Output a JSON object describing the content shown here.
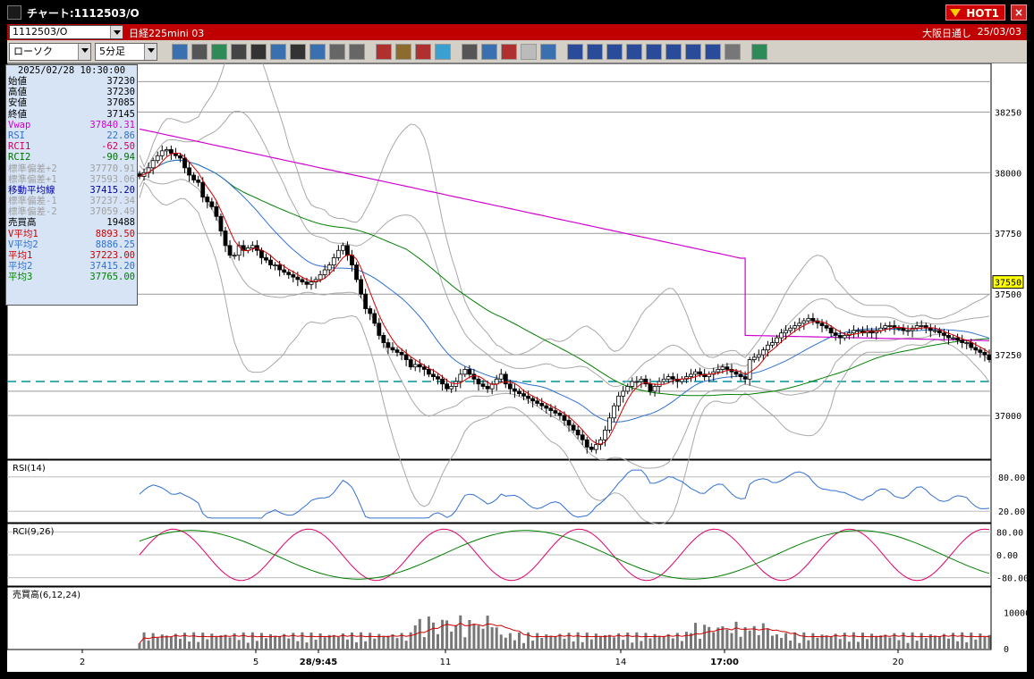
{
  "window": {
    "title": "チャート:1112503/O",
    "hot_badge": "HOT1",
    "close": "×"
  },
  "info": {
    "symbol": "1112503/O",
    "name": "日経225mini 03",
    "market": "大阪日通し",
    "date": "25/03/03"
  },
  "toolbar": {
    "chart_type": "ローソク",
    "timeframe": "5分足",
    "buttons": [
      "zoom",
      "crosshair",
      "draw-line",
      "draw-trend",
      "cursor",
      "undo",
      "memo",
      "delete",
      "bar-up",
      "bar-down",
      "ALL",
      "settings",
      "tools",
      "color",
      "down-arrow",
      "search",
      "cross-plus",
      "blank",
      "calc",
      "MA",
      "BB",
      "MAE",
      "HL",
      "ATR",
      "PS",
      "PVT",
      "window",
      "Log",
      "export"
    ]
  },
  "data_panel": {
    "datetime": "2025/02/28  10:30:00",
    "rows": [
      {
        "label": "始値",
        "value": "37230",
        "color": "#000000"
      },
      {
        "label": "高値",
        "value": "37230",
        "color": "#000000"
      },
      {
        "label": "安値",
        "value": "37085",
        "color": "#000000"
      },
      {
        "label": "終値",
        "value": "37145",
        "color": "#000000"
      },
      {
        "label": "Vwap",
        "value": "37840.31",
        "color": "#d000d0"
      },
      {
        "label": "RSI",
        "value": "22.86",
        "color": "#3070d0"
      },
      {
        "label": "RCI1",
        "value": "-62.50",
        "color": "#d00060"
      },
      {
        "label": "RCI2",
        "value": "-90.94",
        "color": "#007000"
      },
      {
        "label": "標準偏差+2",
        "value": "37770.91",
        "color": "#a0a0a0"
      },
      {
        "label": "標準偏差+1",
        "value": "37593.06",
        "color": "#a0a0a0"
      },
      {
        "label": "移動平均線",
        "value": "37415.20",
        "color": "#0000a0"
      },
      {
        "label": "標準偏差-1",
        "value": "37237.34",
        "color": "#a0a0a0"
      },
      {
        "label": "標準偏差-2",
        "value": "37059.49",
        "color": "#a0a0a0"
      },
      {
        "label": "売買高",
        "value": "19488",
        "color": "#000000"
      },
      {
        "label": "V平均1",
        "value": "8893.50",
        "color": "#d00000"
      },
      {
        "label": "V平均2",
        "value": "8886.25",
        "color": "#3070d0"
      },
      {
        "label": "平均1",
        "value": "37223.00",
        "color": "#d00000"
      },
      {
        "label": "平均2",
        "value": "37415.20",
        "color": "#3070d0"
      },
      {
        "label": "平均3",
        "value": "37765.00",
        "color": "#008000"
      }
    ]
  },
  "price_axis": {
    "ticks": [
      "38250",
      "38000",
      "37750",
      "37500",
      "37250",
      "37000"
    ],
    "current": "37550"
  },
  "panes": {
    "rsi": {
      "title": "RSI(14)",
      "ticks": [
        "80.00",
        "20.00"
      ]
    },
    "rci": {
      "title": "RCI(9,26)",
      "ticks": [
        "80.00",
        "0.00",
        "-80.00"
      ]
    },
    "volume": {
      "title": "売買高(6,12,24)",
      "ticks": [
        "10000",
        "0"
      ]
    }
  },
  "time_axis": [
    {
      "label": "2",
      "bold": false
    },
    {
      "label": "5",
      "bold": false
    },
    {
      "label": "28/9:45",
      "bold": true
    },
    {
      "label": "11",
      "bold": false
    },
    {
      "label": "14",
      "bold": false
    },
    {
      "label": "17:00",
      "bold": true
    },
    {
      "label": "20",
      "bold": false
    }
  ],
  "colors": {
    "title_bar_red": "#c00000",
    "vwap": "#d000d0",
    "ma_short": "#d00000",
    "ma_mid": "#3070d0",
    "ma_long": "#008000",
    "boll": "#a8a8a8",
    "ref_line": "#0090a0"
  },
  "chart_data": {
    "type": "candlestick",
    "price_range": [
      36820,
      38450
    ],
    "candles_close": [
      37985,
      38000,
      38020,
      38050,
      38070,
      38090,
      38095,
      38080,
      38070,
      38060,
      38020,
      37990,
      37970,
      37960,
      37900,
      37880,
      37860,
      37820,
      37760,
      37700,
      37660,
      37660,
      37700,
      37680,
      37690,
      37700,
      37680,
      37650,
      37640,
      37620,
      37620,
      37600,
      37590,
      37580,
      37570,
      37560,
      37550,
      37540,
      37550,
      37560,
      37580,
      37600,
      37620,
      37650,
      37680,
      37700,
      37660,
      37620,
      37560,
      37500,
      37440,
      37420,
      37380,
      37330,
      37300,
      37280,
      37270,
      37260,
      37250,
      37230,
      37200,
      37210,
      37200,
      37190,
      37170,
      37160,
      37150,
      37130,
      37110,
      37120,
      37140,
      37170,
      37190,
      37170,
      37150,
      37130,
      37120,
      37110,
      37130,
      37150,
      37170,
      37130,
      37110,
      37100,
      37090,
      37080,
      37070,
      37060,
      37050,
      37040,
      37030,
      37020,
      37010,
      37000,
      36980,
      36960,
      36940,
      36920,
      36900,
      36870,
      36860,
      36880,
      36900,
      36940,
      36990,
      37040,
      37080,
      37100,
      37120,
      37140,
      37140,
      37150,
      37130,
      37100,
      37120,
      37140,
      37150,
      37160,
      37150,
      37140,
      37150,
      37160,
      37170,
      37180,
      37170,
      37160,
      37170,
      37180,
      37190,
      37200,
      37190,
      37180,
      37170,
      37160,
      37150,
      37230,
      37240,
      37250,
      37270,
      37290,
      37300,
      37320,
      37340,
      37350,
      37360,
      37370,
      37380,
      37390,
      37400,
      37390,
      37380,
      37370,
      37360,
      37340,
      37330,
      37320,
      37330,
      37340,
      37350,
      37350,
      37340,
      37350,
      37340,
      37350,
      37360,
      37370,
      37370,
      37360,
      37360,
      37350,
      37350,
      37360,
      37370,
      37370,
      37360,
      37350,
      37350,
      37340,
      37330,
      37320,
      37320,
      37310,
      37300,
      37300,
      37280,
      37270,
      37260,
      37250,
      37230
    ]
  }
}
